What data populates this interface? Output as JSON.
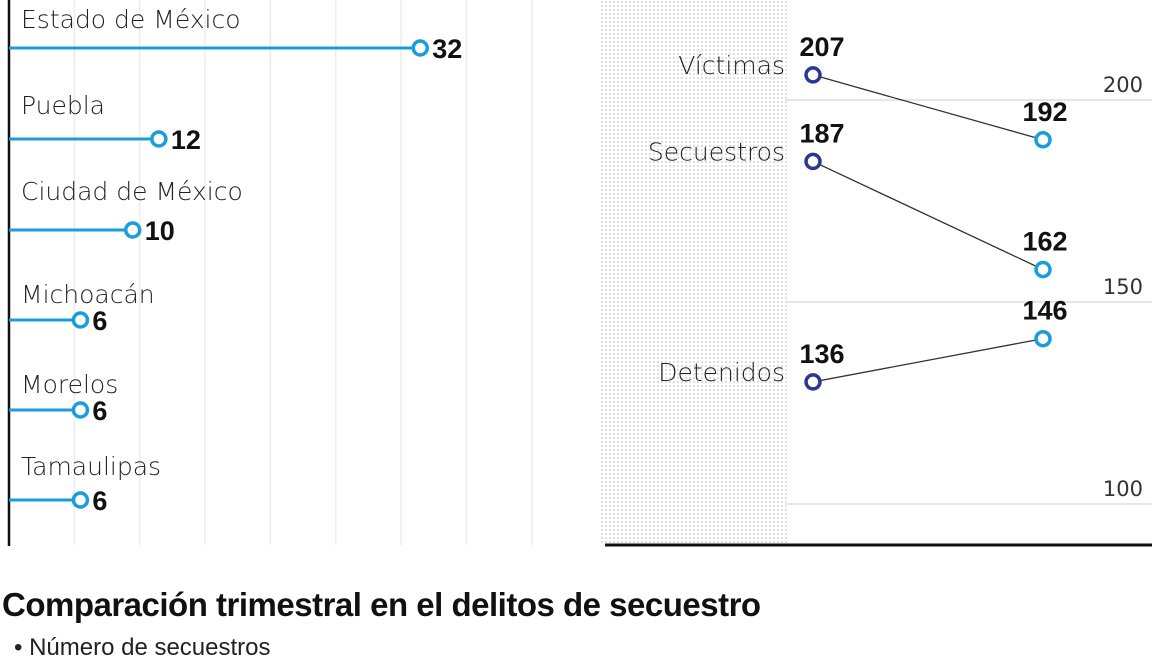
{
  "chart_data": [
    {
      "type": "lollipop-bar",
      "categories": [
        "Estado de México",
        "Puebla",
        "Ciudad de México",
        "Michoacán",
        "Morelos",
        "Tamaulipas"
      ],
      "values": [
        32,
        12,
        10,
        6,
        6,
        6
      ],
      "value_labels": [
        "32",
        "12",
        "10",
        "6",
        "6",
        "6"
      ],
      "xlim": [
        0,
        40
      ],
      "grid": true,
      "color": "#1a9ddb"
    },
    {
      "type": "slope",
      "series": [
        {
          "name": "Víctimas",
          "values": [
            207,
            192
          ],
          "labels": [
            "207",
            "192"
          ]
        },
        {
          "name": "Secuestros",
          "values": [
            187,
            162
          ],
          "labels": [
            "187",
            "162"
          ]
        },
        {
          "name": "Detenidos",
          "values": [
            136,
            146
          ],
          "labels": [
            "136",
            "146"
          ]
        }
      ],
      "ylim": [
        100,
        210
      ],
      "yticks": [
        "200",
        "150",
        "100"
      ],
      "ytick_values": [
        200,
        150,
        100
      ],
      "colors": {
        "first": "#2b3a8f",
        "second": "#1a9ddb"
      }
    }
  ],
  "title": "Comparación trimestral en el delitos de secuestro",
  "subtitle": "• Número de secuestros"
}
